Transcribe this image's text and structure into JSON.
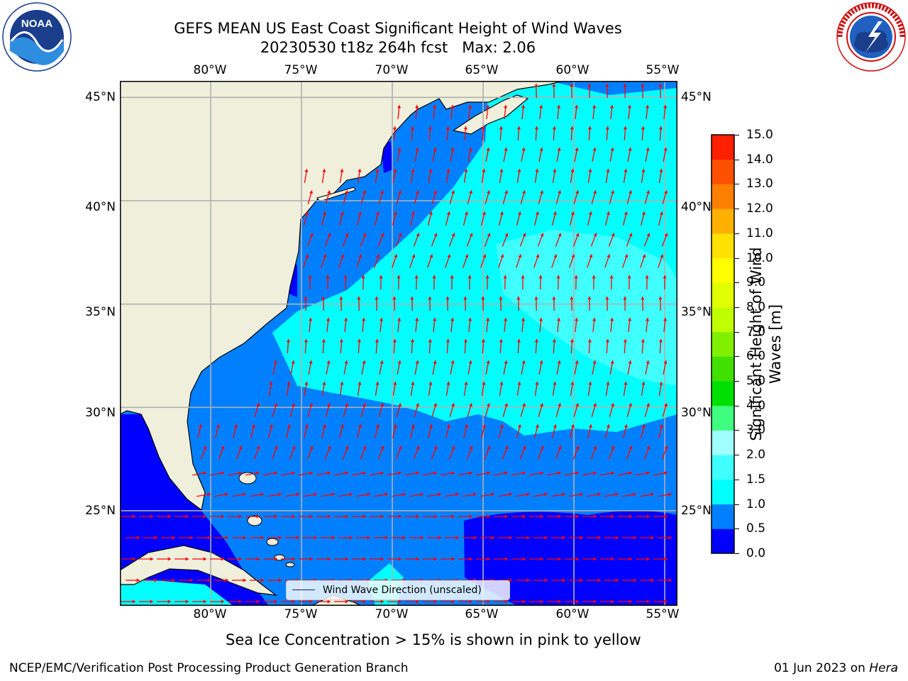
{
  "title": {
    "line1": "GEFS MEAN US East Coast Significant Height of Wind Waves",
    "line2": "20230530 t18z 264h fcst   Max: 2.06"
  },
  "logos": {
    "left": "NOAA",
    "left_ring_text": "NATIONAL OCEANIC AND ATMOSPHERIC ADMINISTRATION · U.S. DEPARTMENT OF COMMERCE",
    "right_ring_text": "NATIONAL WEATHER SERVICE"
  },
  "map": {
    "lon_ticks": [
      "80°W",
      "75°W",
      "70°W",
      "65°W",
      "60°W",
      "55°W"
    ],
    "lat_ticks": [
      "45°N",
      "40°N",
      "35°N",
      "30°N",
      "25°N"
    ],
    "lon_range": [
      -85,
      -54.3
    ],
    "lat_range": [
      20.4,
      45.8
    ],
    "colors": {
      "land": "#efefdc",
      "coast": "#000000",
      "grid": "#b0b0b0",
      "arrow": "#ff0000"
    }
  },
  "legend": {
    "label": "Wind Wave Direction (unscaled)"
  },
  "colorbar": {
    "label": "Significant Height of Wind Waves [m]",
    "levels": [
      "0.0",
      "0.5",
      "1.0",
      "1.5",
      "2.0",
      "3.0",
      "4.0",
      "5.0",
      "6.0",
      "7.0",
      "8.0",
      "9.0",
      "10.0",
      "11.0",
      "12.0",
      "13.0",
      "14.0",
      "15.0"
    ],
    "colors": [
      "#0000ff",
      "#0080ff",
      "#00ffff",
      "#40ffff",
      "#a0ffff",
      "#40ff80",
      "#00e000",
      "#40e000",
      "#80f000",
      "#c0ff00",
      "#e0ff00",
      "#ffff00",
      "#ffe000",
      "#ffb000",
      "#ff8000",
      "#ff5000",
      "#ff2000"
    ]
  },
  "sea_ice_note": "Sea Ice Concentration > 15% is shown in pink to yellow",
  "footer": {
    "left": "NCEP/EMC/Verification Post Processing Product Generation Branch",
    "right_date": "01 Jun 2023 on ",
    "right_machine": "Hera"
  }
}
